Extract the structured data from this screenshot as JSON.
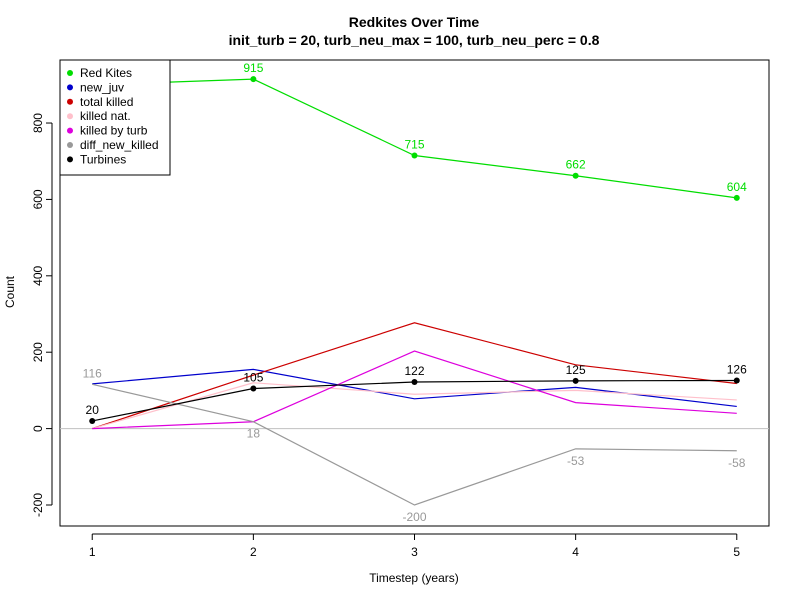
{
  "chart_data": {
    "type": "line",
    "title": "Redkites Over Time",
    "subtitle": "init_turb = 20, turb_neu_max = 100, turb_neu_perc = 0.8",
    "xlabel": "Timestep (years)",
    "ylabel": "Count",
    "x": [
      1,
      2,
      3,
      4,
      5
    ],
    "xlim": [
      0.8,
      5.2
    ],
    "ylim": [
      -255,
      965
    ],
    "xticks": [
      "1",
      "2",
      "3",
      "4",
      "5"
    ],
    "yticks": [
      "-200",
      "0",
      "200",
      "400",
      "600",
      "800"
    ],
    "grid": false,
    "legend_position": "top-left",
    "zero_line": true,
    "series": [
      {
        "name": "Red Kites",
        "color": "#00dd00",
        "values": [
          900,
          915,
          715,
          662,
          604
        ],
        "labels": [
          "",
          "915",
          "715",
          "662",
          "604"
        ],
        "points": [
          false,
          true,
          true,
          true,
          true
        ]
      },
      {
        "name": "new_juv",
        "color": "#0000cc",
        "values": [
          117,
          155,
          78,
          108,
          58
        ],
        "labels": [],
        "points": [
          false,
          false,
          false,
          false,
          false
        ]
      },
      {
        "name": "total killed",
        "color": "#cc0000",
        "values": [
          0,
          140,
          277,
          167,
          118
        ],
        "labels": [],
        "points": [
          false,
          false,
          false,
          false,
          false
        ]
      },
      {
        "name": "killed nat.",
        "color": "#ffc0cb",
        "values": [
          0,
          120,
          90,
          100,
          75
        ],
        "labels": [],
        "points": [
          false,
          false,
          false,
          false,
          false
        ]
      },
      {
        "name": "killed by turb",
        "color": "#dd00dd",
        "values": [
          0,
          18,
          203,
          68,
          40
        ],
        "labels": [],
        "points": [
          false,
          false,
          false,
          false,
          false
        ]
      },
      {
        "name": "diff_new_killed",
        "color": "#999999",
        "values": [
          116,
          18,
          -200,
          -53,
          -58
        ],
        "labels": [
          "116",
          "18",
          "-200",
          "-53",
          "-58"
        ],
        "points": [
          false,
          false,
          false,
          false,
          false
        ]
      },
      {
        "name": "Turbines",
        "color": "#000000",
        "values": [
          20,
          105,
          122,
          125,
          126
        ],
        "labels": [
          "20",
          "105",
          "122",
          "125",
          "126"
        ],
        "points": [
          true,
          true,
          true,
          true,
          true
        ]
      }
    ]
  }
}
